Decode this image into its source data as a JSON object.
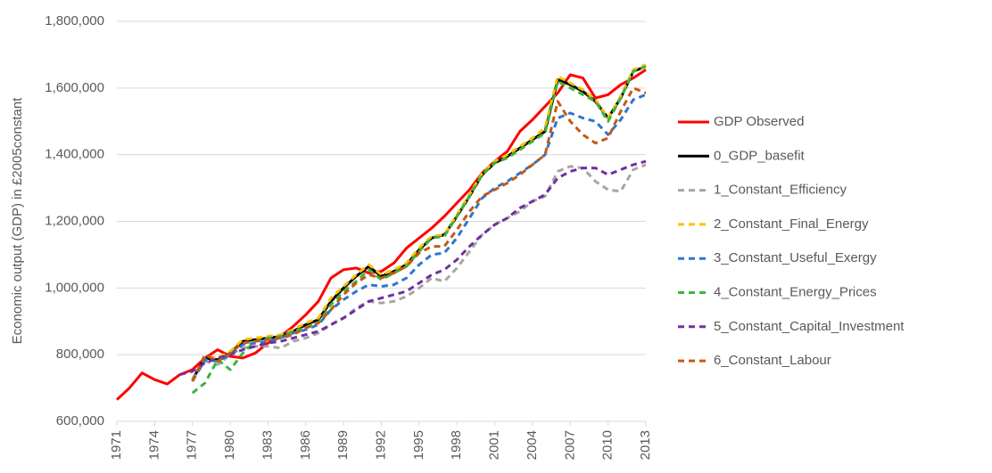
{
  "chart_data": {
    "type": "line",
    "y_label": "Economic output (GDP) in £2005constant",
    "x": [
      1971,
      1972,
      1973,
      1974,
      1975,
      1976,
      1977,
      1978,
      1979,
      1980,
      1981,
      1982,
      1983,
      1984,
      1985,
      1986,
      1987,
      1988,
      1989,
      1990,
      1991,
      1992,
      1993,
      1994,
      1995,
      1996,
      1997,
      1998,
      1999,
      2000,
      2001,
      2002,
      2003,
      2004,
      2005,
      2006,
      2007,
      2008,
      2009,
      2010,
      2011,
      2012,
      2013
    ],
    "xlim": [
      1971,
      2013
    ],
    "xticks": [
      1971,
      1974,
      1977,
      1980,
      1983,
      1986,
      1989,
      1992,
      1995,
      1998,
      2001,
      2004,
      2007,
      2010,
      2013
    ],
    "ylim": [
      600000,
      1800000
    ],
    "yticks": [
      {
        "value": 600000,
        "label": "600,000"
      },
      {
        "value": 800000,
        "label": "800,000"
      },
      {
        "value": 1000000,
        "label": "1,000,000"
      },
      {
        "value": 1200000,
        "label": "1,200,000"
      },
      {
        "value": 1400000,
        "label": "1,400,000"
      },
      {
        "value": 1600000,
        "label": "1,600,000"
      },
      {
        "value": 1800000,
        "label": "1,800,000"
      }
    ],
    "grid": true,
    "legend": "right",
    "series": [
      {
        "name": "GDP Observed",
        "color": "#ff0000",
        "style": "solid",
        "values": [
          665000,
          700000,
          745000,
          725000,
          712000,
          740000,
          755000,
          790000,
          815000,
          795000,
          790000,
          805000,
          835000,
          855000,
          885000,
          920000,
          960000,
          1030000,
          1055000,
          1060000,
          1045000,
          1050000,
          1075000,
          1120000,
          1150000,
          1180000,
          1215000,
          1255000,
          1295000,
          1345000,
          1380000,
          1410000,
          1470000,
          1505000,
          1545000,
          1585000,
          1640000,
          1630000,
          1570000,
          1580000,
          1610000,
          1630000,
          1655000
        ]
      },
      {
        "name": "0_GDP_basefit",
        "color": "#000000",
        "style": "solid",
        "values": [
          null,
          null,
          null,
          null,
          null,
          null,
          725000,
          790000,
          785000,
          805000,
          840000,
          845000,
          850000,
          855000,
          870000,
          890000,
          905000,
          960000,
          1000000,
          1035000,
          1065000,
          1035000,
          1050000,
          1070000,
          1115000,
          1150000,
          1160000,
          1215000,
          1275000,
          1340000,
          1375000,
          1395000,
          1420000,
          1445000,
          1470000,
          1625000,
          1610000,
          1590000,
          1560000,
          1510000,
          1570000,
          1650000,
          1665000
        ]
      },
      {
        "name": "1_Constant_Efficiency",
        "color": "#a6a6a6",
        "style": "dashed",
        "values": [
          null,
          null,
          null,
          null,
          null,
          null,
          725000,
          780000,
          770000,
          800000,
          820000,
          825000,
          825000,
          820000,
          840000,
          850000,
          865000,
          890000,
          910000,
          940000,
          960000,
          955000,
          960000,
          975000,
          1000000,
          1030000,
          1020000,
          1060000,
          1110000,
          1160000,
          1190000,
          1210000,
          1230000,
          1260000,
          1275000,
          1350000,
          1365000,
          1360000,
          1320000,
          1295000,
          1290000,
          1355000,
          1370000
        ]
      },
      {
        "name": "2_Constant_Final_Energy",
        "color": "#ffc000",
        "style": "dashed",
        "values": [
          null,
          null,
          null,
          null,
          null,
          null,
          720000,
          795000,
          790000,
          810000,
          845000,
          850000,
          855000,
          860000,
          875000,
          895000,
          910000,
          970000,
          1005000,
          1040000,
          1070000,
          1040000,
          1055000,
          1075000,
          1120000,
          1155000,
          1160000,
          1220000,
          1280000,
          1345000,
          1380000,
          1400000,
          1425000,
          1450000,
          1480000,
          1635000,
          1615000,
          1595000,
          1565000,
          1510000,
          1575000,
          1655000,
          1670000
        ]
      },
      {
        "name": "3_Constant_Useful_Exergy",
        "color": "#2e75d0",
        "style": "dashed",
        "values": [
          null,
          null,
          null,
          null,
          null,
          null,
          720000,
          785000,
          780000,
          800000,
          830000,
          835000,
          840000,
          850000,
          865000,
          875000,
          890000,
          935000,
          965000,
          990000,
          1010000,
          1005000,
          1010000,
          1030000,
          1070000,
          1100000,
          1105000,
          1150000,
          1210000,
          1270000,
          1300000,
          1320000,
          1345000,
          1370000,
          1400000,
          1510000,
          1525000,
          1510000,
          1500000,
          1460000,
          1505000,
          1565000,
          1580000
        ]
      },
      {
        "name": "4_Constant_Energy_Prices",
        "color": "#3cb43c",
        "style": "dashed",
        "values": [
          null,
          null,
          null,
          null,
          null,
          null,
          685000,
          715000,
          785000,
          755000,
          805000,
          840000,
          850000,
          855000,
          870000,
          880000,
          895000,
          950000,
          990000,
          1020000,
          1055000,
          1025000,
          1045000,
          1065000,
          1110000,
          1150000,
          1155000,
          1215000,
          1275000,
          1340000,
          1375000,
          1390000,
          1415000,
          1440000,
          1465000,
          1620000,
          1600000,
          1580000,
          1560000,
          1500000,
          1570000,
          1650000,
          1665000
        ]
      },
      {
        "name": "5_Constant_Capital_Investment",
        "color": "#7030a0",
        "style": "dashed",
        "values": [
          null,
          null,
          null,
          null,
          null,
          740000,
          750000,
          775000,
          790000,
          800000,
          815000,
          825000,
          835000,
          840000,
          850000,
          860000,
          870000,
          890000,
          910000,
          935000,
          960000,
          970000,
          980000,
          990000,
          1015000,
          1040000,
          1055000,
          1085000,
          1125000,
          1160000,
          1190000,
          1210000,
          1240000,
          1260000,
          1280000,
          1330000,
          1350000,
          1360000,
          1360000,
          1340000,
          1355000,
          1370000,
          1380000
        ]
      },
      {
        "name": "6_Constant_Labour",
        "color": "#c55a11",
        "style": "dashed",
        "values": [
          null,
          null,
          null,
          null,
          null,
          null,
          720000,
          800000,
          780000,
          805000,
          835000,
          840000,
          845000,
          850000,
          860000,
          880000,
          895000,
          935000,
          980000,
          1015000,
          1040000,
          1030000,
          1045000,
          1065000,
          1105000,
          1125000,
          1125000,
          1175000,
          1230000,
          1275000,
          1295000,
          1315000,
          1340000,
          1370000,
          1400000,
          1560000,
          1500000,
          1460000,
          1435000,
          1450000,
          1530000,
          1600000,
          1585000
        ]
      }
    ]
  }
}
